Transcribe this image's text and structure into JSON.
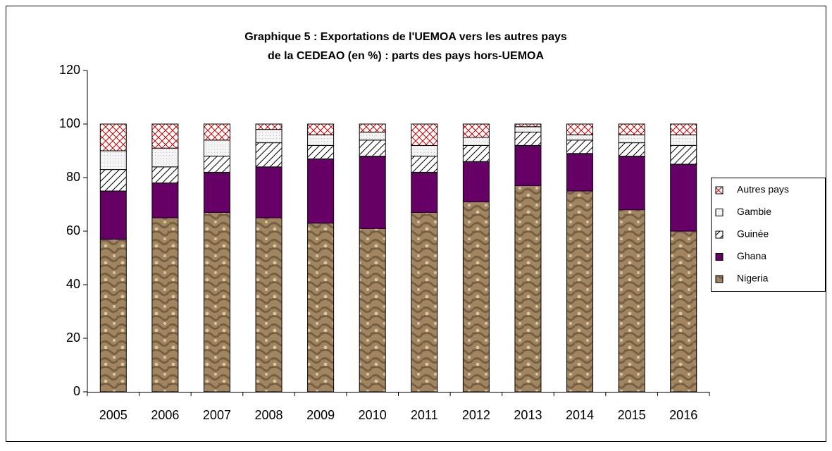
{
  "chart_data": {
    "type": "stacked-bar",
    "title": [
      "Graphique 5 : Exportations de l'UEMOA vers les autres pays",
      "de la CEDEAO (en %) : parts des pays hors-UEMOA"
    ],
    "categories": [
      "2005",
      "2006",
      "2007",
      "2008",
      "2009",
      "2010",
      "2011",
      "2012",
      "2013",
      "2014",
      "2015",
      "2016"
    ],
    "series": [
      {
        "name": "Nigeria",
        "color": "#a08560",
        "values": [
          57,
          65,
          67,
          65,
          63,
          61,
          67,
          71,
          77,
          75,
          68,
          60
        ]
      },
      {
        "name": "Ghana",
        "color": "#660066",
        "values": [
          18,
          13,
          15,
          19,
          24,
          27,
          15,
          15,
          15,
          14,
          20,
          25
        ]
      },
      {
        "name": "Guinée",
        "color": "#000000",
        "values": [
          8,
          6,
          6,
          9,
          5,
          6,
          6,
          6,
          5,
          5,
          5,
          7
        ]
      },
      {
        "name": "Gambie",
        "color": "#c0c0c0",
        "values": [
          7,
          7,
          6,
          5,
          4,
          3,
          4,
          3,
          2,
          2,
          3,
          4
        ]
      },
      {
        "name": "Autres pays",
        "color": "#c00000",
        "values": [
          10,
          9,
          6,
          2,
          4,
          3,
          8,
          5,
          1,
          4,
          4,
          4
        ]
      }
    ],
    "ylim": [
      0,
      120
    ],
    "yticks": [
      0,
      20,
      40,
      60,
      80,
      100,
      120
    ],
    "grid": false,
    "legend": "right"
  }
}
